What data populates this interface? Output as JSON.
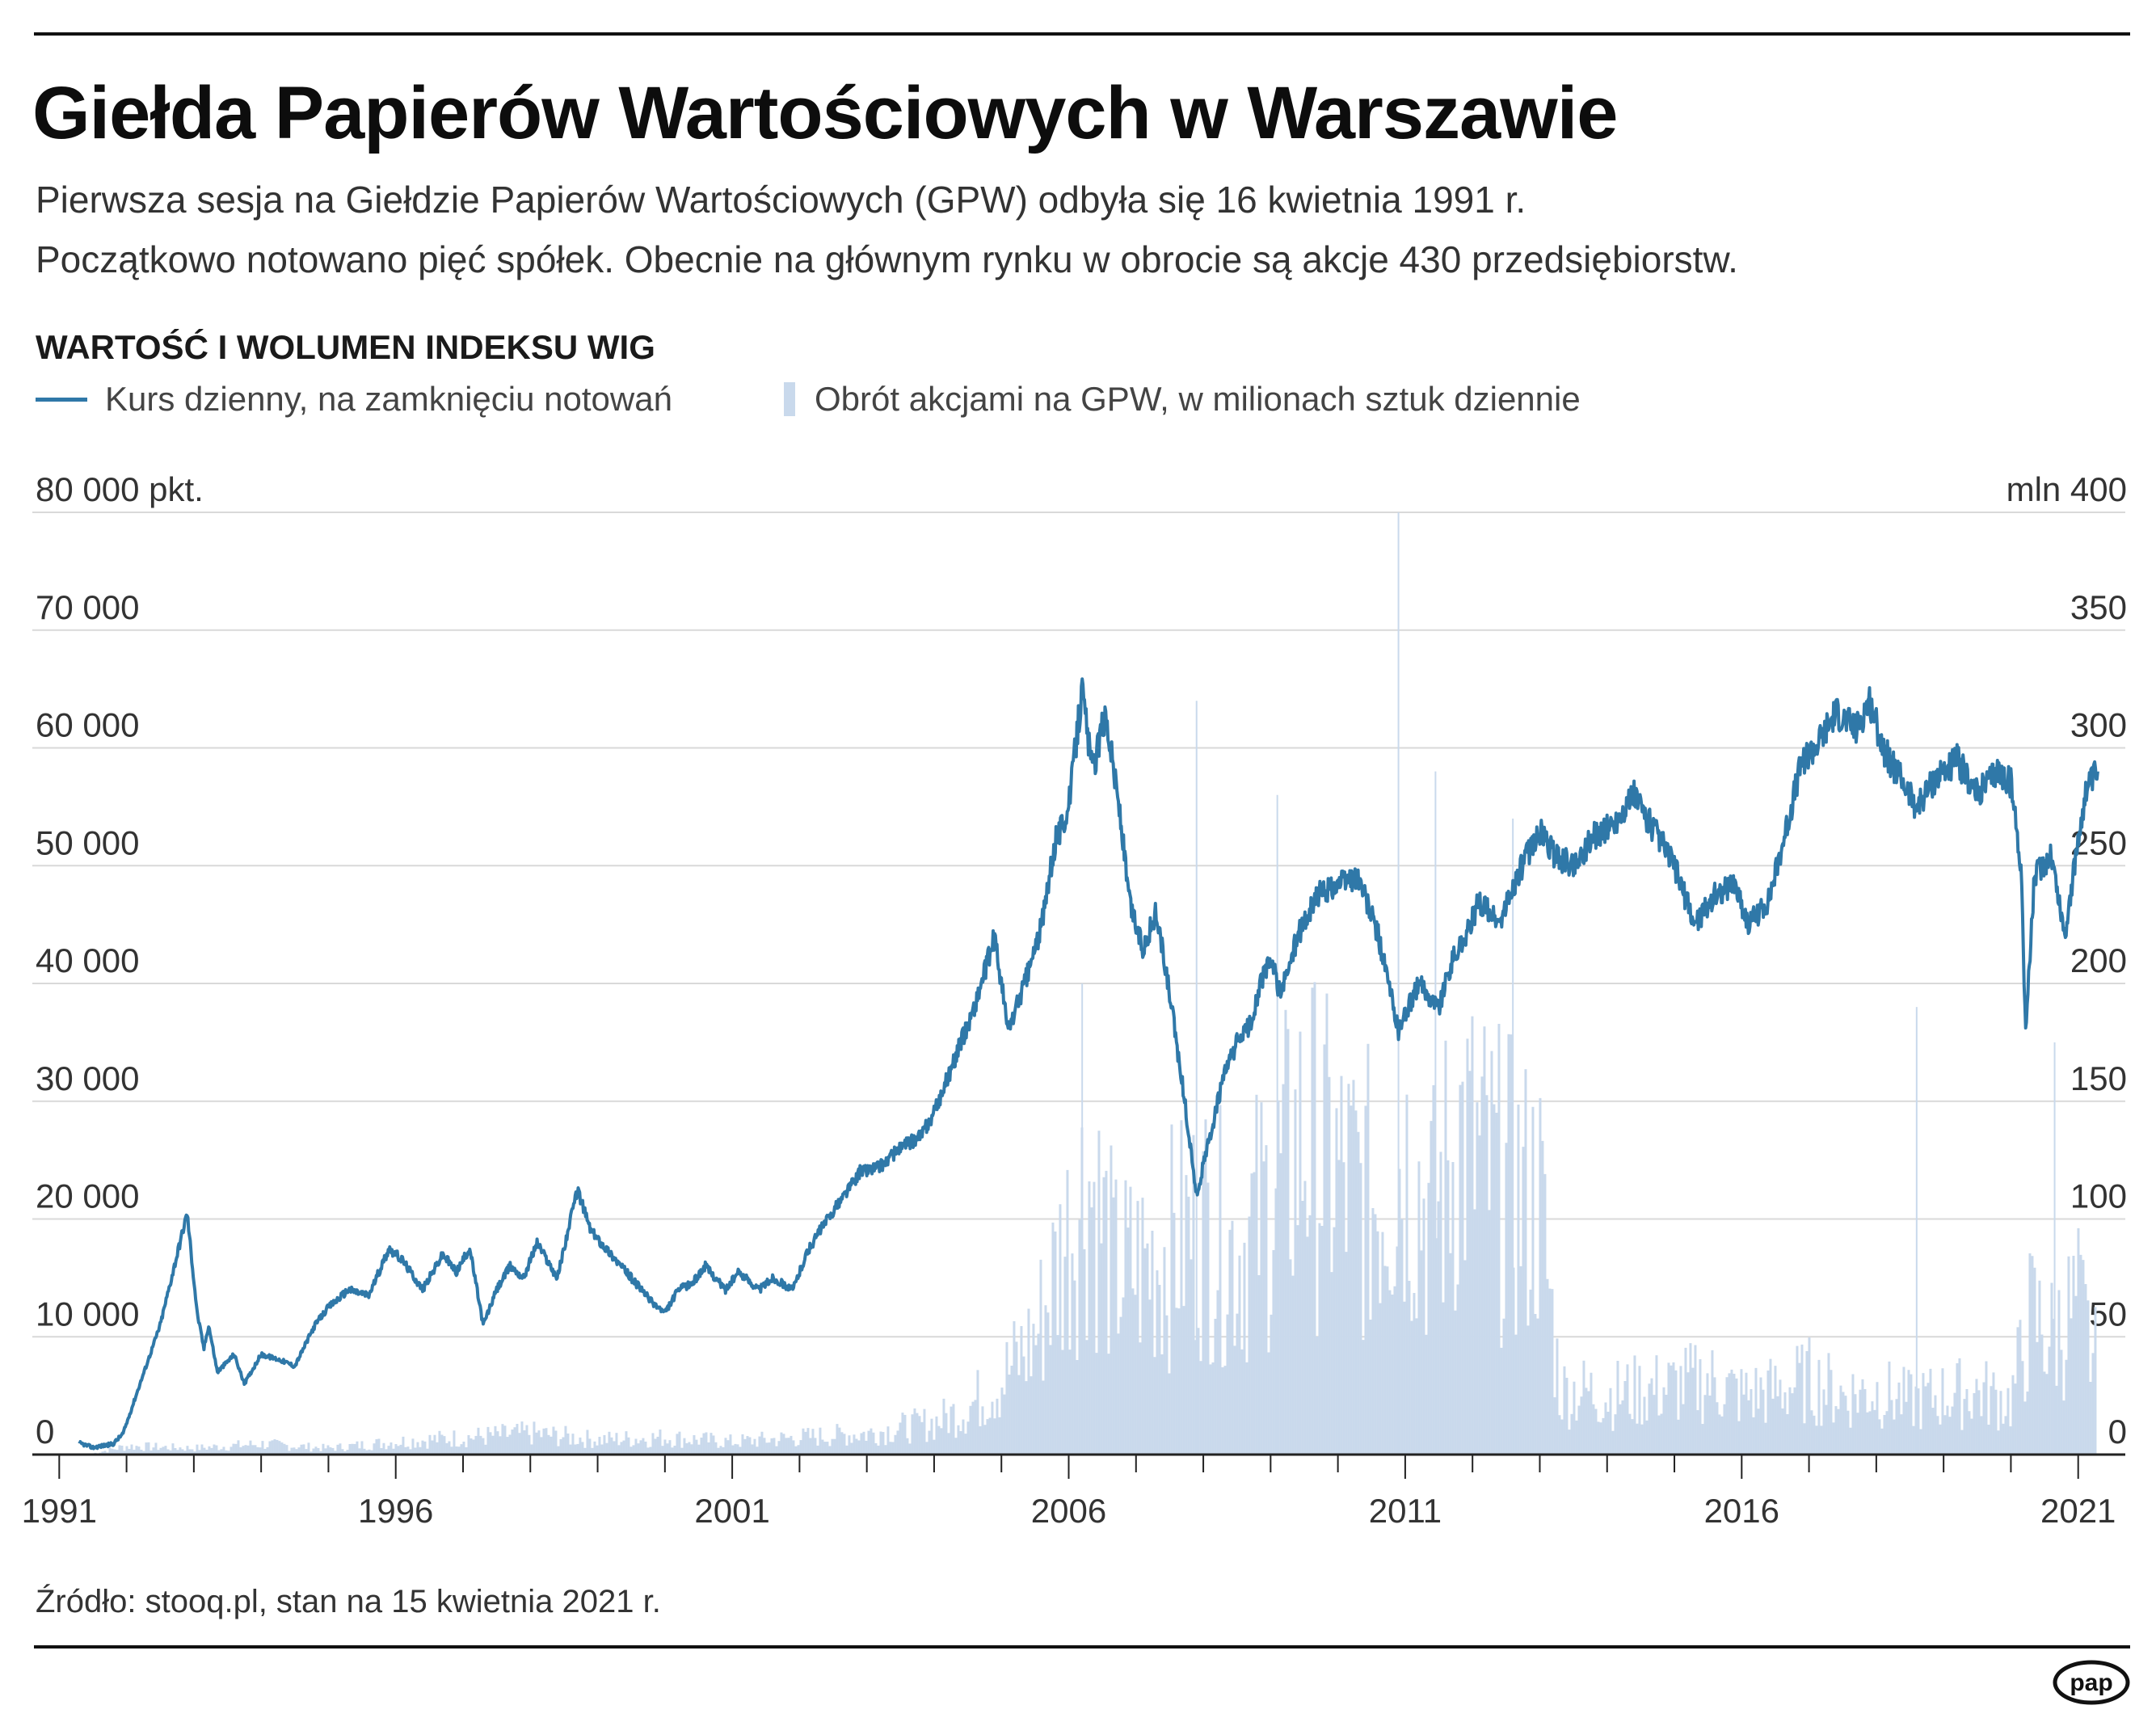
{
  "header": {
    "title": "Giełda Papierów Wartościowych w Warszawie",
    "subtitle_line1": "Pierwsza sesja na Giełdzie Papierów Wartościowych (GPW) odbyła się 16 kwietnia 1991 r.",
    "subtitle_line2": "Początkowo notowano pięć spółek. Obecnie na głównym rynku w obrocie są akcje 430 przedsiębiorstw."
  },
  "footer": {
    "source": "Źródło: stooq.pl, stan na 15 kwietnia 2021 r.",
    "logo_text": "pap"
  },
  "colors": {
    "line": "#2f78a8",
    "bars": "#c9d9ec",
    "grid": "#d9d9d9",
    "axis": "#222222"
  },
  "chart_data": {
    "type": "line",
    "title": "WARTOŚĆ I WOLUMEN INDEKSU WIG",
    "legend": {
      "line": "Kurs dzienny, na zamknięciu notowań",
      "bars": "Obrót akcjami na GPW, w milionach sztuk dziennie"
    },
    "x_range": [
      1990.6,
      2021.7
    ],
    "x_ticks": [
      1991,
      1996,
      2001,
      2006,
      2011,
      2016,
      2021
    ],
    "x_tick_labels": [
      "1991",
      "1996",
      "2001",
      "2006",
      "2011",
      "2016",
      "2021"
    ],
    "x_minor_ticks": [
      1992,
      1993,
      1994,
      1995,
      1997,
      1998,
      1999,
      2000,
      2002,
      2003,
      2004,
      2005,
      2007,
      2008,
      2009,
      2010,
      2012,
      2013,
      2014,
      2015,
      2017,
      2018,
      2019,
      2020
    ],
    "y_left": {
      "range": [
        0,
        80000
      ],
      "ticks": [
        0,
        10000,
        20000,
        30000,
        40000,
        50000,
        60000,
        70000,
        80000
      ],
      "labels": [
        "0",
        "10 000",
        "20 000",
        "30 000",
        "40 000",
        "50 000",
        "60 000",
        "70 000",
        "80 000 pkt."
      ]
    },
    "y_right": {
      "range": [
        0,
        400
      ],
      "ticks": [
        0,
        50,
        100,
        150,
        200,
        250,
        300,
        350,
        400
      ],
      "labels": [
        "0",
        "50",
        "100",
        "150",
        "200",
        "250",
        "300",
        "350",
        "mln 400"
      ]
    },
    "wig_series": {
      "name": "Kurs dzienny, na zamknięciu notowań",
      "x": [
        1991.29,
        1991.5,
        1991.8,
        1991.95,
        1992.2,
        1992.5,
        1992.9,
        1993.05,
        1993.15,
        1993.22,
        1993.35,
        1993.6,
        1993.75,
        1994.0,
        1994.3,
        1994.5,
        1994.8,
        1995.0,
        1995.3,
        1995.6,
        1995.9,
        1996.1,
        1996.4,
        1996.7,
        1996.9,
        1997.1,
        1997.3,
        1997.5,
        1997.7,
        1997.9,
        1998.1,
        1998.4,
        1998.6,
        1998.7,
        1998.9,
        1999.2,
        1999.5,
        1999.8,
        2000.0,
        2000.2,
        2000.4,
        2000.6,
        2000.9,
        2001.1,
        2001.4,
        2001.6,
        2001.9,
        2002.1,
        2002.3,
        2002.6,
        2002.9,
        2003.2,
        2003.5,
        2003.8,
        2004.0,
        2004.3,
        2004.6,
        2004.9,
        2005.1,
        2005.4,
        2005.6,
        2005.8,
        2006.0,
        2006.2,
        2006.35,
        2006.55,
        2006.75,
        2006.9,
        2007.1,
        2007.3,
        2007.5,
        2007.7,
        2007.9,
        2008.1,
        2008.3,
        2008.5,
        2008.7,
        2008.85,
        2009.0,
        2009.15,
        2009.4,
        2009.7,
        2010.0,
        2010.3,
        2010.6,
        2010.9,
        2011.2,
        2011.5,
        2011.7,
        2011.9,
        2012.1,
        2012.4,
        2012.7,
        2013.0,
        2013.2,
        2013.5,
        2013.8,
        2014.1,
        2014.4,
        2014.7,
        2015.0,
        2015.3,
        2015.6,
        2015.9,
        2016.1,
        2016.4,
        2016.7,
        2016.9,
        2017.1,
        2017.4,
        2017.7,
        2017.9,
        2018.1,
        2018.3,
        2018.6,
        2018.9,
        2019.2,
        2019.5,
        2019.8,
        2020.0,
        2020.15,
        2020.22,
        2020.35,
        2020.6,
        2020.8,
        2020.95,
        2021.1,
        2021.29
      ],
      "y": [
        1000,
        600,
        900,
        1800,
        6000,
        11000,
        20500,
        12000,
        9000,
        11000,
        7000,
        8500,
        6000,
        8500,
        8000,
        7500,
        11000,
        12500,
        14000,
        13500,
        17500,
        16500,
        14000,
        17000,
        15500,
        17500,
        11000,
        14000,
        16000,
        15000,
        18000,
        15000,
        20000,
        22500,
        19000,
        17000,
        15000,
        13000,
        12000,
        14000,
        14500,
        16000,
        14000,
        15500,
        14000,
        15000,
        14000,
        17000,
        19000,
        21500,
        24000,
        24500,
        26000,
        27000,
        29000,
        33500,
        38000,
        44000,
        36000,
        41000,
        45000,
        52000,
        55000,
        65000,
        58000,
        63000,
        55000,
        47000,
        43000,
        46000,
        39000,
        31000,
        22000,
        27000,
        32000,
        35000,
        36500,
        40000,
        42000,
        39000,
        44000,
        47500,
        48500,
        49000,
        44000,
        36000,
        40000,
        38000,
        42000,
        44000,
        47000,
        45000,
        49500,
        53000,
        51000,
        50000,
        52500,
        53500,
        56000,
        53000,
        50000,
        45000,
        47500,
        48500,
        45000,
        47000,
        54000,
        59000,
        60000,
        63000,
        61500,
        64000,
        60000,
        58000,
        55000,
        57500,
        59000,
        56000,
        58000,
        57000,
        50000,
        36000,
        49000,
        51000,
        44000,
        50000,
        56000,
        58000
      ]
    },
    "volume_series": {
      "name": "Obrót akcjami na GPW, w milionach sztuk dziennie",
      "x": [
        1991.5,
        1992.0,
        1993.0,
        1994.0,
        1995.0,
        1996.0,
        1997.0,
        1998.0,
        1999.0,
        2000.0,
        2001.0,
        2002.0,
        2003.0,
        2004.0,
        2004.5,
        2005.0,
        2005.5,
        2005.9,
        2006.3,
        2006.7,
        2007.2,
        2007.6,
        2008.0,
        2008.5,
        2009.0,
        2009.5,
        2010.0,
        2010.5,
        2011.0,
        2011.4,
        2011.8,
        2012.3,
        2012.8,
        2013.0,
        2013.3,
        2013.6,
        2014.0,
        2014.5,
        2015.0,
        2015.5,
        2016.0,
        2016.5,
        2017.0,
        2017.5,
        2018.0,
        2018.5,
        2019.0,
        2019.5,
        2020.0,
        2020.3,
        2020.6,
        2021.0,
        2021.29
      ],
      "y": [
        0.5,
        4,
        3,
        5,
        3,
        6,
        8,
        10,
        7,
        8,
        6,
        8,
        10,
        15,
        22,
        35,
        55,
        95,
        130,
        85,
        90,
        100,
        110,
        95,
        120,
        150,
        130,
        120,
        140,
        110,
        150,
        130,
        120,
        120,
        30,
        30,
        28,
        30,
        32,
        35,
        28,
        30,
        35,
        28,
        30,
        25,
        28,
        30,
        25,
        65,
        55,
        70,
        40
      ],
      "spikes_x": [
        2006.2,
        2007.9,
        2009.1,
        2010.9,
        2011.45,
        2012.6,
        2018.6,
        2020.65
      ],
      "spikes_y": [
        200,
        320,
        280,
        400,
        290,
        270,
        190,
        175
      ]
    }
  }
}
